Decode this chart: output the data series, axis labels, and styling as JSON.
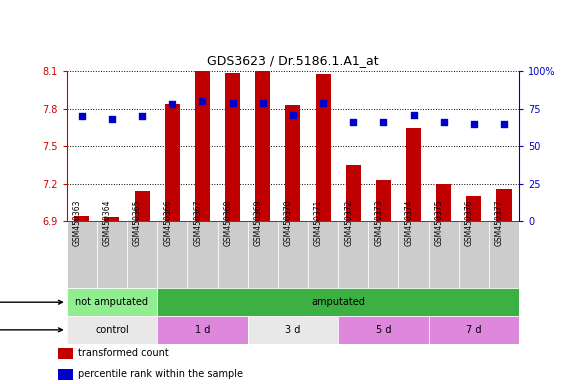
{
  "title": "GDS3623 / Dr.5186.1.A1_at",
  "samples": [
    "GSM450363",
    "GSM450364",
    "GSM450365",
    "GSM450366",
    "GSM450367",
    "GSM450368",
    "GSM450369",
    "GSM450370",
    "GSM450371",
    "GSM450372",
    "GSM450373",
    "GSM450374",
    "GSM450375",
    "GSM450376",
    "GSM450377"
  ],
  "bar_values": [
    6.94,
    6.93,
    7.14,
    7.84,
    8.1,
    8.09,
    8.1,
    7.83,
    8.08,
    7.35,
    7.23,
    7.65,
    7.2,
    7.1,
    7.16
  ],
  "dot_values": [
    70,
    68,
    70,
    78,
    80,
    79,
    79,
    71,
    79,
    66,
    66,
    71,
    66,
    65,
    65
  ],
  "bar_bottom": 6.9,
  "ylim_left": [
    6.9,
    8.1
  ],
  "ylim_right": [
    0,
    100
  ],
  "yticks_left": [
    6.9,
    7.2,
    7.5,
    7.8,
    8.1
  ],
  "yticks_right": [
    0,
    25,
    50,
    75,
    100
  ],
  "bar_color": "#C00000",
  "dot_color": "#0000CC",
  "bg_color": "#FFFFFF",
  "plot_bg_color": "#FFFFFF",
  "grid_color": "#000000",
  "protocol_groups": [
    {
      "label": "not amputated",
      "start": 0,
      "end": 3,
      "color": "#90EE90"
    },
    {
      "label": "amputated",
      "start": 3,
      "end": 15,
      "color": "#3CB043"
    }
  ],
  "time_groups": [
    {
      "label": "control",
      "start": 0,
      "end": 3,
      "color": "#E8E8E8"
    },
    {
      "label": "1 d",
      "start": 3,
      "end": 6,
      "color": "#DD88DD"
    },
    {
      "label": "3 d",
      "start": 6,
      "end": 9,
      "color": "#E8E8E8"
    },
    {
      "label": "5 d",
      "start": 9,
      "end": 12,
      "color": "#DD88DD"
    },
    {
      "label": "7 d",
      "start": 12,
      "end": 15,
      "color": "#DD88DD"
    }
  ],
  "left_axis_color": "#CC0000",
  "right_axis_color": "#0000CC",
  "tick_area_color": "#CCCCCC",
  "col_border_color": "#999999"
}
